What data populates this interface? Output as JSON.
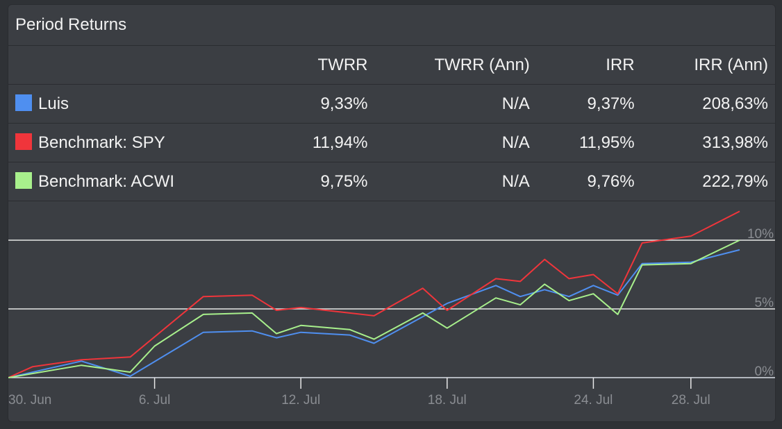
{
  "panel": {
    "title": "Period Returns"
  },
  "table": {
    "headers": [
      "",
      "TWRR",
      "TWRR (Ann)",
      "IRR",
      "IRR (Ann)"
    ],
    "rows": [
      {
        "name": "Luis",
        "color": "#4f8ff0",
        "twrr": "9,33%",
        "twrr_ann": "N/A",
        "irr": "9,37%",
        "irr_ann": "208,63%"
      },
      {
        "name": "Benchmark: SPY",
        "color": "#f0353b",
        "twrr": "11,94%",
        "twrr_ann": "N/A",
        "irr": "11,95%",
        "irr_ann": "313,98%"
      },
      {
        "name": "Benchmark: ACWI",
        "color": "#a8f08c",
        "twrr": "9,75%",
        "twrr_ann": "N/A",
        "irr": "9,76%",
        "irr_ann": "222,79%"
      }
    ]
  },
  "chart_data": {
    "type": "line",
    "x": [
      "2024-06-30",
      "2024-07-01",
      "2024-07-02",
      "2024-07-03",
      "2024-07-04",
      "2024-07-05",
      "2024-07-06",
      "2024-07-07",
      "2024-07-08",
      "2024-07-09",
      "2024-07-10",
      "2024-07-11",
      "2024-07-12",
      "2024-07-13",
      "2024-07-14",
      "2024-07-15",
      "2024-07-16",
      "2024-07-17",
      "2024-07-18",
      "2024-07-19",
      "2024-07-20",
      "2024-07-21",
      "2024-07-22",
      "2024-07-23",
      "2024-07-24",
      "2024-07-25",
      "2024-07-26",
      "2024-07-27",
      "2024-07-28",
      "2024-07-29",
      "2024-07-30",
      "2024-07-31"
    ],
    "x_tick_labels": [
      "30. Jun",
      "6. Jul",
      "12. Jul",
      "18. Jul",
      "24. Jul",
      "28. Jul"
    ],
    "y_tick_labels": [
      "0%",
      "5%",
      "10%"
    ],
    "ylim": [
      0,
      12
    ],
    "grid": true,
    "series": [
      {
        "name": "Luis",
        "color": "#4f8ff0",
        "points": [
          [
            "2024-06-30",
            0.0
          ],
          [
            "2024-07-03",
            1.2
          ],
          [
            "2024-07-05",
            0.1
          ],
          [
            "2024-07-08",
            3.3
          ],
          [
            "2024-07-10",
            3.4
          ],
          [
            "2024-07-11",
            2.9
          ],
          [
            "2024-07-12",
            3.3
          ],
          [
            "2024-07-14",
            3.1
          ],
          [
            "2024-07-15",
            2.5
          ],
          [
            "2024-07-18",
            5.4
          ],
          [
            "2024-07-20",
            6.7
          ],
          [
            "2024-07-21",
            5.9
          ],
          [
            "2024-07-22",
            6.4
          ],
          [
            "2024-07-23",
            5.9
          ],
          [
            "2024-07-24",
            6.7
          ],
          [
            "2024-07-25",
            6.0
          ],
          [
            "2024-07-26",
            8.3
          ],
          [
            "2024-07-28",
            8.4
          ],
          [
            "2024-07-30",
            9.3
          ]
        ]
      },
      {
        "name": "Benchmark: SPY",
        "color": "#f0353b",
        "points": [
          [
            "2024-06-30",
            0.0
          ],
          [
            "2024-07-01",
            0.8
          ],
          [
            "2024-07-03",
            1.3
          ],
          [
            "2024-07-05",
            1.5
          ],
          [
            "2024-07-08",
            5.9
          ],
          [
            "2024-07-10",
            6.0
          ],
          [
            "2024-07-11",
            4.9
          ],
          [
            "2024-07-12",
            5.1
          ],
          [
            "2024-07-14",
            4.7
          ],
          [
            "2024-07-15",
            4.5
          ],
          [
            "2024-07-17",
            6.5
          ],
          [
            "2024-07-18",
            4.9
          ],
          [
            "2024-07-20",
            7.2
          ],
          [
            "2024-07-21",
            7.0
          ],
          [
            "2024-07-22",
            8.6
          ],
          [
            "2024-07-23",
            7.2
          ],
          [
            "2024-07-24",
            7.5
          ],
          [
            "2024-07-25",
            6.1
          ],
          [
            "2024-07-26",
            9.8
          ],
          [
            "2024-07-28",
            10.3
          ],
          [
            "2024-07-30",
            12.1
          ]
        ]
      },
      {
        "name": "Benchmark: ACWI",
        "color": "#a8f08c",
        "points": [
          [
            "2024-06-30",
            0.0
          ],
          [
            "2024-07-03",
            0.9
          ],
          [
            "2024-07-05",
            0.4
          ],
          [
            "2024-07-06",
            2.3
          ],
          [
            "2024-07-08",
            4.6
          ],
          [
            "2024-07-10",
            4.7
          ],
          [
            "2024-07-11",
            3.2
          ],
          [
            "2024-07-12",
            3.8
          ],
          [
            "2024-07-14",
            3.5
          ],
          [
            "2024-07-15",
            2.8
          ],
          [
            "2024-07-17",
            4.7
          ],
          [
            "2024-07-18",
            3.6
          ],
          [
            "2024-07-20",
            5.8
          ],
          [
            "2024-07-21",
            5.3
          ],
          [
            "2024-07-22",
            6.8
          ],
          [
            "2024-07-23",
            5.6
          ],
          [
            "2024-07-24",
            6.1
          ],
          [
            "2024-07-25",
            4.6
          ],
          [
            "2024-07-26",
            8.2
          ],
          [
            "2024-07-28",
            8.3
          ],
          [
            "2024-07-30",
            10.0
          ]
        ]
      }
    ]
  }
}
